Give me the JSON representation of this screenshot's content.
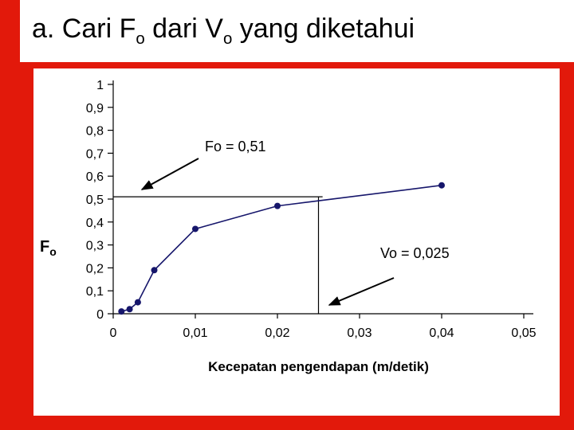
{
  "slide": {
    "title": {
      "prefix": "a. Cari F",
      "sub1": "o",
      "mid": " dari V",
      "sub2": "o",
      "suffix": " yang diketahui"
    },
    "colors": {
      "background": "#e2190b",
      "panel": "#ffffff",
      "marker": "#16166b",
      "line": "#16166b",
      "axis": "#000000"
    }
  },
  "chart_data": {
    "type": "line",
    "title": "",
    "xlabel": "Kecepatan pengendapan (m/detik)",
    "ylabel": "Fo",
    "xlim": [
      0,
      0.05
    ],
    "ylim": [
      0,
      1
    ],
    "grid": false,
    "legend": false,
    "x": [
      0.001,
      0.002,
      0.003,
      0.005,
      0.01,
      0.02,
      0.04
    ],
    "y": [
      0.01,
      0.02,
      0.05,
      0.19,
      0.37,
      0.47,
      0.56
    ],
    "x_tick_values": [
      0,
      0.01,
      0.02,
      0.03,
      0.04,
      0.05
    ],
    "x_tick_labels": [
      "0",
      "0,01",
      "0,02",
      "0,03",
      "0,04",
      "0,05"
    ],
    "y_tick_values": [
      0,
      0.1,
      0.2,
      0.3,
      0.4,
      0.5,
      0.6,
      0.7,
      0.8,
      0.9,
      1
    ],
    "y_tick_labels": [
      "0",
      "0,1",
      "0,2",
      "0,3",
      "0,4",
      "0,5",
      "0,6",
      "0,7",
      "0,8",
      "0,9",
      "1"
    ],
    "marker_color": "#16166b",
    "line_color": "#16166b",
    "annotations": [
      {
        "text": "Fo = 0,51",
        "type": "hline",
        "value": 0.51,
        "extent": 0.0255
      },
      {
        "text": "Vo = 0,025",
        "type": "vline",
        "value": 0.025,
        "extent": 0.51
      }
    ]
  }
}
